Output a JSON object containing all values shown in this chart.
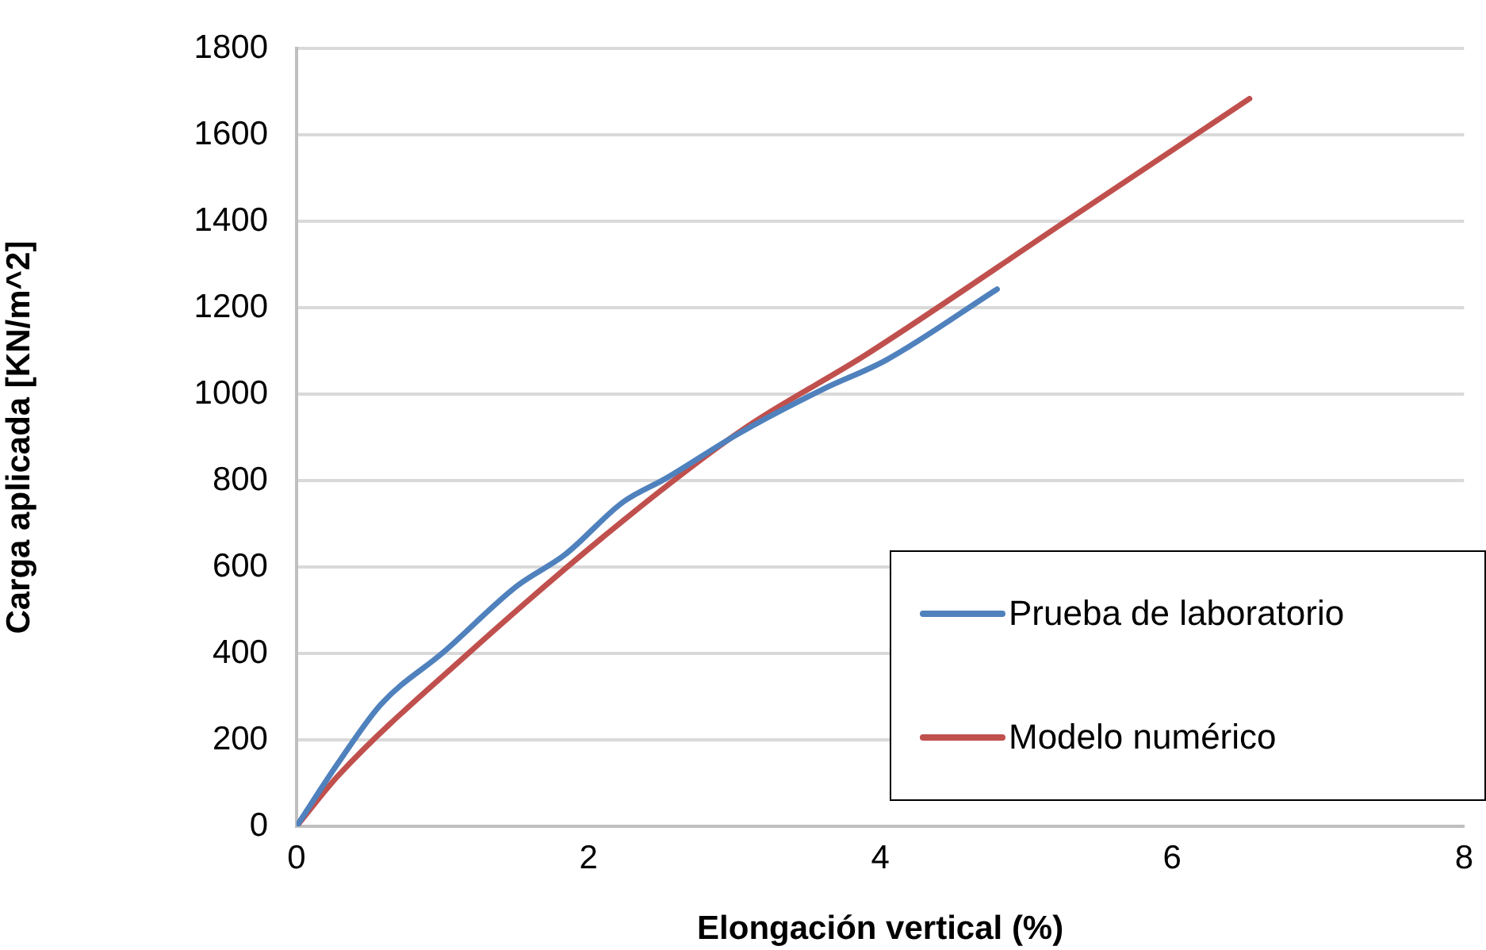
{
  "chart_data": {
    "type": "line",
    "xlabel": "Elongación vertical (%)",
    "ylabel": "Carga aplicada [KN/m^2]",
    "xlim": [
      0,
      8
    ],
    "xticks": [
      0,
      2,
      4,
      6,
      8
    ],
    "ylim": [
      0,
      1800
    ],
    "yticks": [
      0,
      200,
      400,
      600,
      800,
      1000,
      1200,
      1400,
      1600,
      1800
    ],
    "grid": "y",
    "legend": "bottom right",
    "marker": "none",
    "line_style": "solid",
    "series": [
      {
        "name": "Prueba de laboratorio",
        "color": "#4f81bd",
        "x": [
          0,
          0.29,
          0.58,
          1.01,
          1.51,
          1.84,
          2.24,
          2.53,
          3.03,
          3.61,
          4.04,
          4.8
        ],
        "values": [
          0,
          149,
          283,
          404,
          556,
          629,
          751,
          805,
          909,
          1012,
          1079,
          1243
        ]
      },
      {
        "name": "Modelo numérico",
        "color": "#c0504d",
        "x": [
          0,
          0.29,
          1.15,
          2.24,
          3.07,
          3.9,
          5.27,
          6.53
        ],
        "values": [
          0,
          119,
          392,
          708,
          921,
          1091,
          1400,
          1684
        ]
      }
    ]
  }
}
